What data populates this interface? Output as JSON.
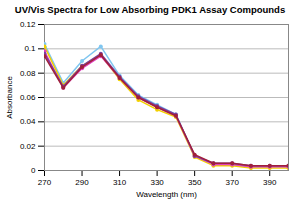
{
  "chart_data": {
    "type": "line",
    "title": "UV/Vis Spectra for Low Absorbing PDK1 Assay Compounds",
    "x_label": "Wavelength (nm)",
    "y_label": "Absorbance",
    "x": [
      270,
      280,
      290,
      300,
      310,
      320,
      330,
      340,
      350,
      360,
      370,
      380,
      390,
      400
    ],
    "series": [
      {
        "color": "#7fc6f0",
        "marker": "circle",
        "values": [
          0.104,
          0.072,
          0.09,
          0.102,
          0.078,
          0.062,
          0.054,
          0.046,
          0.012,
          0.005,
          0.005,
          0.003,
          0.003,
          0.003
        ]
      },
      {
        "color": "#f2d000",
        "marker": "circle",
        "values": [
          0.102,
          0.07,
          0.086,
          0.095,
          0.075,
          0.058,
          0.05,
          0.044,
          0.011,
          0.004,
          0.004,
          0.002,
          0.002,
          0.002
        ]
      },
      {
        "color": "#e040c0",
        "marker": "circle",
        "values": [
          0.098,
          0.068,
          0.084,
          0.094,
          0.076,
          0.06,
          0.052,
          0.045,
          0.012,
          0.005,
          0.005,
          0.003,
          0.003,
          0.003
        ]
      },
      {
        "color": "#7a3fa0",
        "marker": "circle",
        "values": [
          0.096,
          0.069,
          0.086,
          0.096,
          0.077,
          0.061,
          0.053,
          0.046,
          0.012,
          0.006,
          0.006,
          0.004,
          0.004,
          0.004
        ]
      },
      {
        "color": "#a0203a",
        "marker": "circle",
        "values": [
          0.094,
          0.068,
          0.085,
          0.095,
          0.076,
          0.06,
          0.052,
          0.045,
          0.013,
          0.006,
          0.006,
          0.004,
          0.004,
          0.004
        ]
      }
    ],
    "xlim": [
      270,
      400
    ],
    "xticks": [
      270,
      290,
      310,
      330,
      350,
      370,
      390
    ],
    "ylim": [
      0,
      0.12
    ],
    "yticks": [
      0,
      0.02,
      0.04,
      0.06,
      0.08,
      0.1,
      0.12
    ],
    "grid": true
  }
}
